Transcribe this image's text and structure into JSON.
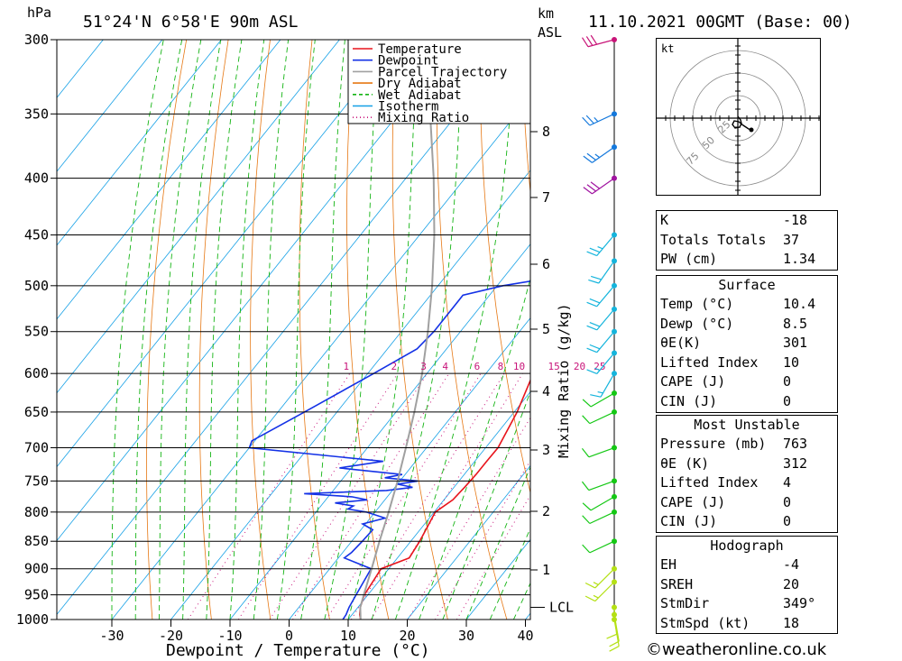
{
  "header": {
    "location": "51°24'N  6°58'E  90m  ASL",
    "datetime": "11.10.2021  00GMT  (Base: 00)",
    "pressure_unit": "hPa",
    "height_unit": "km",
    "height_unit2": "ASL"
  },
  "chart_data": {
    "type": "line",
    "subtype": "skew-T log-P diagram",
    "xlabel": "Dewpoint / Temperature (°C)",
    "ylabel": "hPa",
    "right_axis_label": "Mixing Ratio (g/kg)",
    "x_ticks": [
      -30,
      -20,
      -10,
      0,
      10,
      20,
      30,
      40
    ],
    "pressure_levels": [
      300,
      350,
      400,
      450,
      500,
      550,
      600,
      650,
      700,
      750,
      800,
      850,
      900,
      950,
      1000
    ],
    "height_ticks_km": [
      1,
      2,
      3,
      4,
      5,
      6,
      7,
      8
    ],
    "lcl_label": "LCL",
    "lcl_pressure": 975,
    "mixing_ratio_labels": [
      "1",
      "2",
      "3",
      "4",
      "6",
      "8",
      "10",
      "15",
      "20",
      "25"
    ],
    "legend": [
      {
        "name": "Temperature",
        "color": "#e8141c",
        "style": "solid"
      },
      {
        "name": "Dewpoint",
        "color": "#1432e6",
        "style": "solid"
      },
      {
        "name": "Parcel Trajectory",
        "color": "#a0a0a0",
        "style": "solid"
      },
      {
        "name": "Dry Adiabat",
        "color": "#e67814",
        "style": "solid"
      },
      {
        "name": "Wet Adiabat",
        "color": "#14b414",
        "style": "dashed"
      },
      {
        "name": "Isotherm",
        "color": "#14a0e6",
        "style": "solid"
      },
      {
        "name": "Mixing Ratio",
        "color": "#c8147a",
        "style": "dotted"
      }
    ],
    "series": [
      {
        "name": "Temperature",
        "color": "#e8141c",
        "points": [
          [
            1000,
            12.1
          ],
          [
            990,
            11.3
          ],
          [
            975,
            10.4
          ],
          [
            950,
            9.4
          ],
          [
            900,
            8.7
          ],
          [
            880,
            12.0
          ],
          [
            850,
            11.5
          ],
          [
            800,
            10.2
          ],
          [
            780,
            11.5
          ],
          [
            760,
            11.8
          ],
          [
            740,
            12.0
          ],
          [
            720,
            12.0
          ],
          [
            700,
            12.1
          ],
          [
            650,
            10.5
          ],
          [
            600,
            8.0
          ],
          [
            550,
            5.0
          ],
          [
            500,
            0.0
          ],
          [
            480,
            -1.7
          ],
          [
            460,
            -2.7
          ],
          [
            440,
            -4.6
          ],
          [
            420,
            -6.0
          ],
          [
            400,
            -7.5
          ],
          [
            380,
            -9.0
          ],
          [
            350,
            -14.5
          ],
          [
            300,
            -24.0
          ]
        ]
      },
      {
        "name": "Dewpoint",
        "color": "#1432e6",
        "points": [
          [
            1000,
            9.1
          ],
          [
            990,
            9.0
          ],
          [
            975,
            8.5
          ],
          [
            950,
            8.0
          ],
          [
            900,
            7.0
          ],
          [
            880,
            1.0
          ],
          [
            870,
            1.5
          ],
          [
            850,
            1.8
          ],
          [
            830,
            2.0
          ],
          [
            820,
            -0.5
          ],
          [
            810,
            2.5
          ],
          [
            800,
            -1.5
          ],
          [
            795,
            -5.0
          ],
          [
            790,
            -4.5
          ],
          [
            785,
            -8.0
          ],
          [
            780,
            -3.0
          ],
          [
            775,
            -6.0
          ],
          [
            770,
            -14.5
          ],
          [
            765,
            -1.0
          ],
          [
            760,
            3.0
          ],
          [
            755,
            0.0
          ],
          [
            750,
            3.0
          ],
          [
            745,
            -3.0
          ],
          [
            740,
            -0.5
          ],
          [
            730,
            -12.0
          ],
          [
            720,
            -5.5
          ],
          [
            700,
            -30.0
          ],
          [
            690,
            -30.5
          ],
          [
            650,
            -25.5
          ],
          [
            600,
            -19.0
          ],
          [
            570,
            -15.0
          ],
          [
            550,
            -14.5
          ],
          [
            510,
            -14.5
          ],
          [
            500,
            -9.0
          ],
          [
            490,
            -0.3
          ],
          [
            470,
            -0.5
          ],
          [
            460,
            -2.0
          ],
          [
            445,
            -2.0
          ],
          [
            430,
            -1.5
          ],
          [
            420,
            -5.0
          ],
          [
            400,
            -13.0
          ],
          [
            380,
            -12.0
          ],
          [
            360,
            -10.0
          ],
          [
            350,
            -7.0
          ],
          [
            330,
            -8.5
          ],
          [
            310,
            -10.0
          ],
          [
            300,
            -10.5
          ]
        ]
      },
      {
        "name": "Parcel Trajectory",
        "color": "#a0a0a0",
        "points": [
          [
            1000,
            12.1
          ],
          [
            975,
            10.4
          ],
          [
            950,
            9.3
          ],
          [
            900,
            7.1
          ],
          [
            850,
            4.7
          ],
          [
            800,
            2.3
          ],
          [
            750,
            -0.4
          ],
          [
            700,
            -3.5
          ],
          [
            650,
            -6.9
          ],
          [
            600,
            -10.8
          ],
          [
            550,
            -15.5
          ],
          [
            500,
            -21.0
          ],
          [
            450,
            -27.5
          ],
          [
            400,
            -35.3
          ],
          [
            350,
            -44.6
          ],
          [
            300,
            -55.5
          ]
        ]
      }
    ],
    "wind_barbs": [
      {
        "p": 1000,
        "dir": 170,
        "kt": 10
      },
      {
        "p": 990,
        "dir": 170,
        "kt": 10
      },
      {
        "p": 975,
        "dir": 175,
        "kt": 10
      },
      {
        "p": 925,
        "dir": 225,
        "kt": 15
      },
      {
        "p": 900,
        "dir": 225,
        "kt": 15
      },
      {
        "p": 850,
        "dir": 245,
        "kt": 10
      },
      {
        "p": 800,
        "dir": 245,
        "kt": 10
      },
      {
        "p": 775,
        "dir": 240,
        "kt": 10
      },
      {
        "p": 750,
        "dir": 250,
        "kt": 10
      },
      {
        "p": 700,
        "dir": 250,
        "kt": 10
      },
      {
        "p": 650,
        "dir": 245,
        "kt": 10
      },
      {
        "p": 625,
        "dir": 240,
        "kt": 10
      },
      {
        "p": 600,
        "dir": 210,
        "kt": 15
      },
      {
        "p": 575,
        "dir": 220,
        "kt": 15
      },
      {
        "p": 550,
        "dir": 220,
        "kt": 20
      },
      {
        "p": 525,
        "dir": 220,
        "kt": 20
      },
      {
        "p": 500,
        "dir": 220,
        "kt": 20
      },
      {
        "p": 475,
        "dir": 215,
        "kt": 20
      },
      {
        "p": 450,
        "dir": 220,
        "kt": 25
      },
      {
        "p": 400,
        "dir": 235,
        "kt": 30
      },
      {
        "p": 375,
        "dir": 235,
        "kt": 25
      },
      {
        "p": 350,
        "dir": 245,
        "kt": 25
      },
      {
        "p": 300,
        "dir": 255,
        "kt": 30
      }
    ],
    "hodograph": {
      "unit": "kt",
      "ring_labels": [
        "25",
        "50",
        "75"
      ],
      "points": [
        [
          0,
          2
        ],
        [
          3,
          -2
        ],
        [
          4,
          -6
        ],
        [
          2,
          -10
        ],
        [
          -3,
          -11
        ],
        [
          -6,
          -7
        ],
        [
          -4,
          -3
        ],
        [
          1,
          -4
        ],
        [
          6,
          -8
        ],
        [
          12,
          -12
        ],
        [
          15,
          -13
        ]
      ]
    }
  },
  "indices": [
    {
      "label": "K",
      "value": "-18"
    },
    {
      "label": "Totals Totals",
      "value": "37"
    },
    {
      "label": "PW (cm)",
      "value": "1.34"
    }
  ],
  "surface": {
    "title": "Surface",
    "rows": [
      {
        "label": "Temp (°C)",
        "value": "10.4"
      },
      {
        "label": "Dewp (°C)",
        "value": "8.5"
      },
      {
        "label": "θE(K)",
        "value": "301"
      },
      {
        "label": "Lifted Index",
        "value": "10"
      },
      {
        "label": "CAPE (J)",
        "value": "0"
      },
      {
        "label": "CIN (J)",
        "value": "0"
      }
    ]
  },
  "most_unstable": {
    "title": "Most Unstable",
    "rows": [
      {
        "label": "Pressure (mb)",
        "value": "763"
      },
      {
        "label": "θE (K)",
        "value": "312"
      },
      {
        "label": "Lifted Index",
        "value": "4"
      },
      {
        "label": "CAPE (J)",
        "value": "0"
      },
      {
        "label": "CIN (J)",
        "value": "0"
      }
    ]
  },
  "hodograph_stats": {
    "title": "Hodograph",
    "rows": [
      {
        "label": "EH",
        "value": "-4"
      },
      {
        "label": "SREH",
        "value": "20"
      },
      {
        "label": "StmDir",
        "value": "349°"
      },
      {
        "label": "StmSpd (kt)",
        "value": "18"
      }
    ]
  },
  "credit": "©weatheronline.co.uk"
}
